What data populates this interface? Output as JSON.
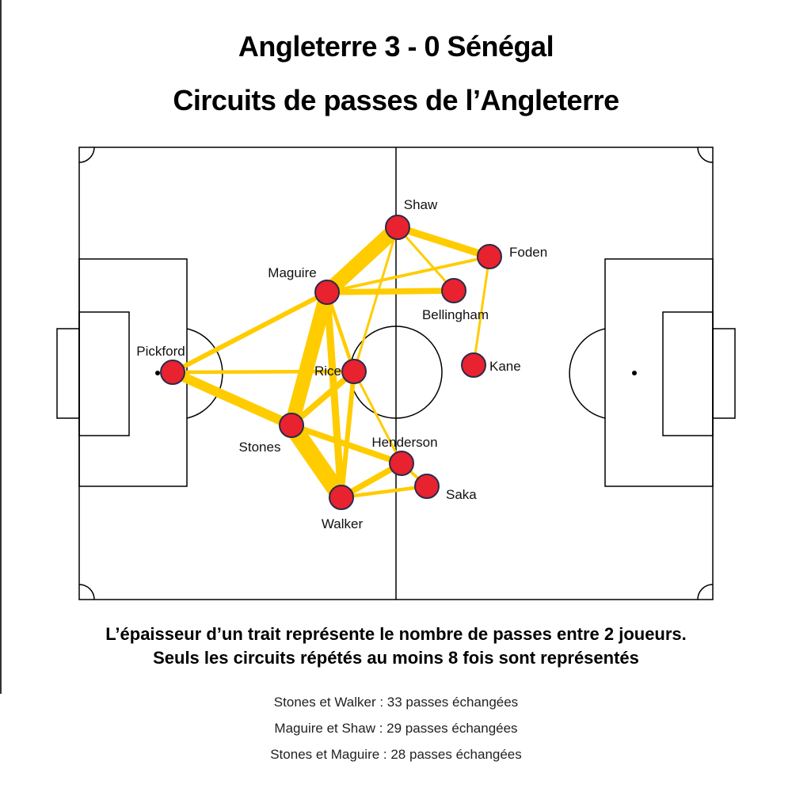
{
  "title": "Angleterre 3 - 0 Sénégal",
  "subtitle": "Circuits de passes de l’Angleterre",
  "caption_line1": "L’épaisseur d’un trait représente le nombre de passes entre 2 joueurs.",
  "caption_line2": "Seuls les circuits répétés au moins 8 fois sont représentés",
  "stats": [
    "Stones et Walker : 33 passes échangées",
    "Maguire et Shaw : 29 passes échangées",
    "Stones et Maguire : 28 passes échangées"
  ],
  "colors": {
    "link": "#ffcc00",
    "node_fill": "#e8222e",
    "node_stroke": "#2b2b4a",
    "pitch_line": "#000000"
  },
  "players": [
    {
      "id": "pickford",
      "name": "Pickford"
    },
    {
      "id": "maguire",
      "name": "Maguire"
    },
    {
      "id": "shaw",
      "name": "Shaw"
    },
    {
      "id": "foden",
      "name": "Foden"
    },
    {
      "id": "bellingham",
      "name": "Bellingham"
    },
    {
      "id": "kane",
      "name": "Kane"
    },
    {
      "id": "rice",
      "name": "Rice"
    },
    {
      "id": "stones",
      "name": "Stones"
    },
    {
      "id": "henderson",
      "name": "Henderson"
    },
    {
      "id": "saka",
      "name": "Saka"
    },
    {
      "id": "walker",
      "name": "Walker"
    }
  ],
  "links": [
    {
      "a": "stones",
      "b": "walker",
      "passes": 33
    },
    {
      "a": "maguire",
      "b": "shaw",
      "passes": 29
    },
    {
      "a": "stones",
      "b": "maguire",
      "passes": 28
    },
    {
      "a": "pickford",
      "b": "stones",
      "passes": 20
    },
    {
      "a": "maguire",
      "b": "walker",
      "passes": 16
    },
    {
      "a": "shaw",
      "b": "foden",
      "passes": 16
    },
    {
      "a": "maguire",
      "b": "bellingham",
      "passes": 14
    },
    {
      "a": "rice",
      "b": "stones",
      "passes": 14
    },
    {
      "a": "stones",
      "b": "henderson",
      "passes": 14
    },
    {
      "a": "walker",
      "b": "henderson",
      "passes": 14
    },
    {
      "a": "pickford",
      "b": "maguire",
      "passes": 12
    },
    {
      "a": "rice",
      "b": "walker",
      "passes": 12
    },
    {
      "a": "pickford",
      "b": "rice",
      "passes": 10
    },
    {
      "a": "maguire",
      "b": "rice",
      "passes": 10
    },
    {
      "a": "walker",
      "b": "saka",
      "passes": 10
    },
    {
      "a": "maguire",
      "b": "foden",
      "passes": 9
    },
    {
      "a": "henderson",
      "b": "saka",
      "passes": 9
    },
    {
      "a": "shaw",
      "b": "bellingham",
      "passes": 8
    },
    {
      "a": "shaw",
      "b": "rice",
      "passes": 8
    },
    {
      "a": "rice",
      "b": "henderson",
      "passes": 8
    },
    {
      "a": "foden",
      "b": "kane",
      "passes": 8
    }
  ]
}
